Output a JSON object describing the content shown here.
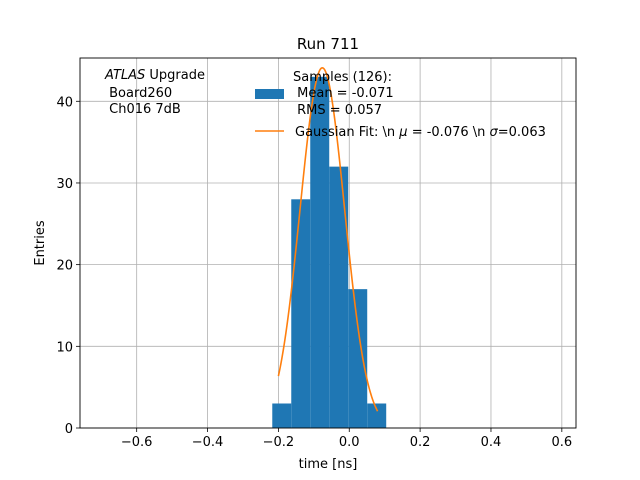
{
  "chart_data": {
    "type": "bar",
    "title": "Run 711",
    "xlabel": "time [ns]",
    "ylabel": "Entries",
    "xlim": [
      -0.76,
      0.64
    ],
    "ylim": [
      0,
      45.3
    ],
    "grid": true,
    "xticks": [
      -0.6,
      -0.4,
      -0.2,
      0.0,
      0.2,
      0.4,
      0.6
    ],
    "xtick_labels": [
      "−0.6",
      "−0.4",
      "−0.2",
      "0.0",
      "0.2",
      "0.4",
      "0.6"
    ],
    "yticks": [
      0,
      10,
      20,
      30,
      40
    ],
    "ytick_labels": [
      "0",
      "10",
      "20",
      "30",
      "40"
    ],
    "bins": [
      {
        "x0": -0.2173,
        "x1": -0.1637,
        "count": 3
      },
      {
        "x0": -0.1637,
        "x1": -0.1101,
        "count": 28
      },
      {
        "x0": -0.1101,
        "x1": -0.0565,
        "count": 43
      },
      {
        "x0": -0.0565,
        "x1": -0.0029,
        "count": 32
      },
      {
        "x0": -0.0029,
        "x1": 0.0507,
        "count": 17
      },
      {
        "x0": 0.0507,
        "x1": 0.1043,
        "count": 3
      }
    ],
    "hist_color": "#1f77b4",
    "fit": {
      "amplitude": 44.1,
      "mu": -0.076,
      "sigma": 0.063,
      "x_range": [
        -0.2,
        0.08
      ],
      "color": "#ff7f0e"
    },
    "legend": {
      "location": "upper-right",
      "samples": {
        "line1": "Samples (126):",
        "line2": " Mean = -0.071",
        "line3": " RMS = 0.057"
      },
      "fit_label_prefix": "Gaussian Fit: \\n ",
      "fit_mu_symbol": "μ",
      "fit_mid": " = -0.076 \\n ",
      "fit_sigma_symbol": "σ",
      "fit_suffix": "=0.063"
    },
    "annotation": {
      "experiment": "ATLAS",
      "experiment_suffix": " Upgrade",
      "line2": " Board260",
      "line3": " Ch016 7dB"
    }
  }
}
